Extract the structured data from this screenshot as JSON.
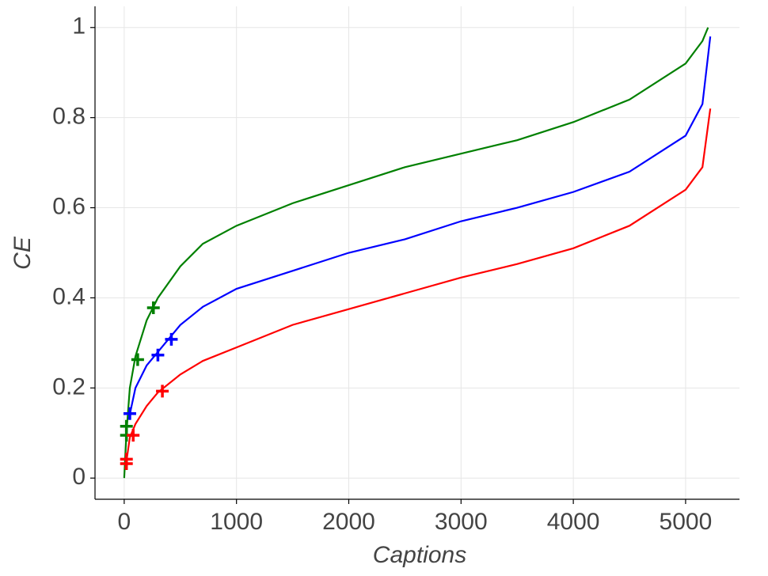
{
  "chart_data": {
    "type": "line",
    "x_label": "Captions",
    "y_label": "CE",
    "xlim": [
      -260,
      5480
    ],
    "ylim": [
      -0.047,
      1.047
    ],
    "xticks": [
      0,
      1000,
      2000,
      3000,
      4000,
      5000
    ],
    "yticks": [
      0,
      0.2,
      0.4,
      0.6,
      0.8,
      1
    ],
    "grid": true,
    "series": [
      {
        "color": "#008000",
        "x": [
          0,
          20,
          50,
          100,
          200,
          300,
          500,
          700,
          1000,
          1500,
          2000,
          2500,
          3000,
          3500,
          4000,
          4500,
          5000,
          5150,
          5200
        ],
        "values": [
          0,
          0.1,
          0.2,
          0.27,
          0.35,
          0.4,
          0.47,
          0.52,
          0.56,
          0.61,
          0.65,
          0.69,
          0.72,
          0.75,
          0.79,
          0.84,
          0.92,
          0.97,
          1.0
        ],
        "markers": {
          "x": [
            20,
            20,
            120,
            260
          ],
          "y": [
            0.095,
            0.115,
            0.263,
            0.378
          ]
        }
      },
      {
        "color": "#0000ff",
        "x": [
          40,
          100,
          200,
          300,
          500,
          700,
          1000,
          1500,
          2000,
          2500,
          3000,
          3500,
          4000,
          4500,
          5000,
          5150,
          5220
        ],
        "values": [
          0.13,
          0.2,
          0.25,
          0.28,
          0.34,
          0.38,
          0.42,
          0.46,
          0.5,
          0.53,
          0.57,
          0.6,
          0.635,
          0.68,
          0.76,
          0.83,
          0.98
        ],
        "markers": {
          "x": [
            50,
            300,
            420
          ],
          "y": [
            0.143,
            0.273,
            0.308
          ]
        }
      },
      {
        "color": "#ff0000",
        "x": [
          10,
          50,
          100,
          200,
          300,
          500,
          700,
          1000,
          1500,
          2000,
          2500,
          3000,
          3500,
          4000,
          4500,
          5000,
          5150,
          5220
        ],
        "values": [
          0.02,
          0.09,
          0.12,
          0.16,
          0.19,
          0.23,
          0.26,
          0.29,
          0.34,
          0.375,
          0.41,
          0.445,
          0.475,
          0.51,
          0.56,
          0.64,
          0.69,
          0.82
        ],
        "markers": {
          "x": [
            20,
            20,
            80,
            340
          ],
          "y": [
            0.032,
            0.042,
            0.095,
            0.193
          ]
        }
      }
    ]
  }
}
